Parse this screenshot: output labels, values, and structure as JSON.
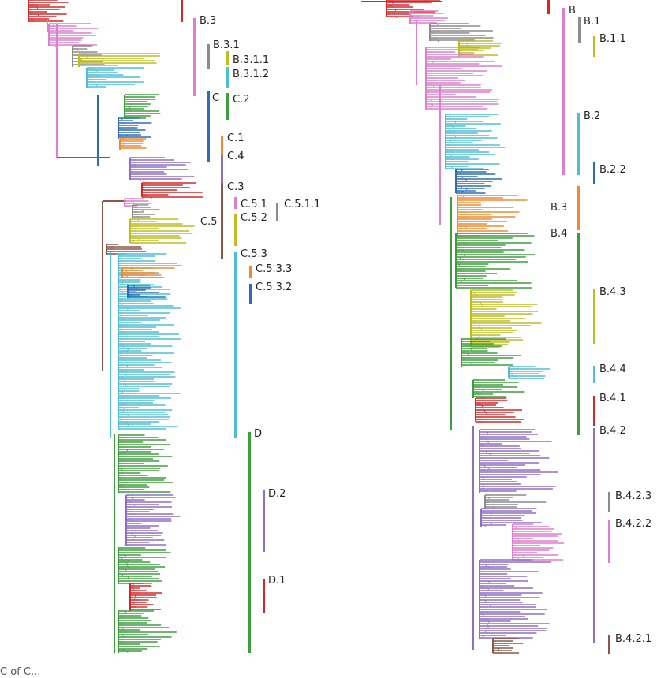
{
  "colors": {
    "red": "#d62728",
    "pink": "#dd7fcd",
    "gray": "#8c8c8c",
    "olive": "#bcbd22",
    "cyan": "#4fbed4",
    "blue": "#2e6db4",
    "green": "#3e9e3e",
    "orange": "#f08a2e",
    "purple": "#8f6fc4",
    "brown": "#8c564b"
  },
  "left_tree": {
    "labels": [
      "B.3",
      "B.3.1",
      "B.3.1.1",
      "B.3.1.2",
      "C",
      "C.2",
      "C.1",
      "C.4",
      "C.3",
      "C.5",
      "C.5.1",
      "C.5.1.1",
      "C.5.2",
      "C.5.3",
      "C.5.3.3",
      "C.5.3.2",
      "D",
      "D.2",
      "D.1"
    ]
  },
  "right_tree": {
    "labels": [
      "B",
      "B.1",
      "B.1.1",
      "B.2",
      "B.2.2",
      "B.3",
      "B.4",
      "B.4.3",
      "B.4.4",
      "B.4.1",
      "B.4.2",
      "B.4.2.3",
      "B.4.2.2",
      "B.4.2.1"
    ]
  },
  "footer": {
    "text": "C of C..."
  }
}
